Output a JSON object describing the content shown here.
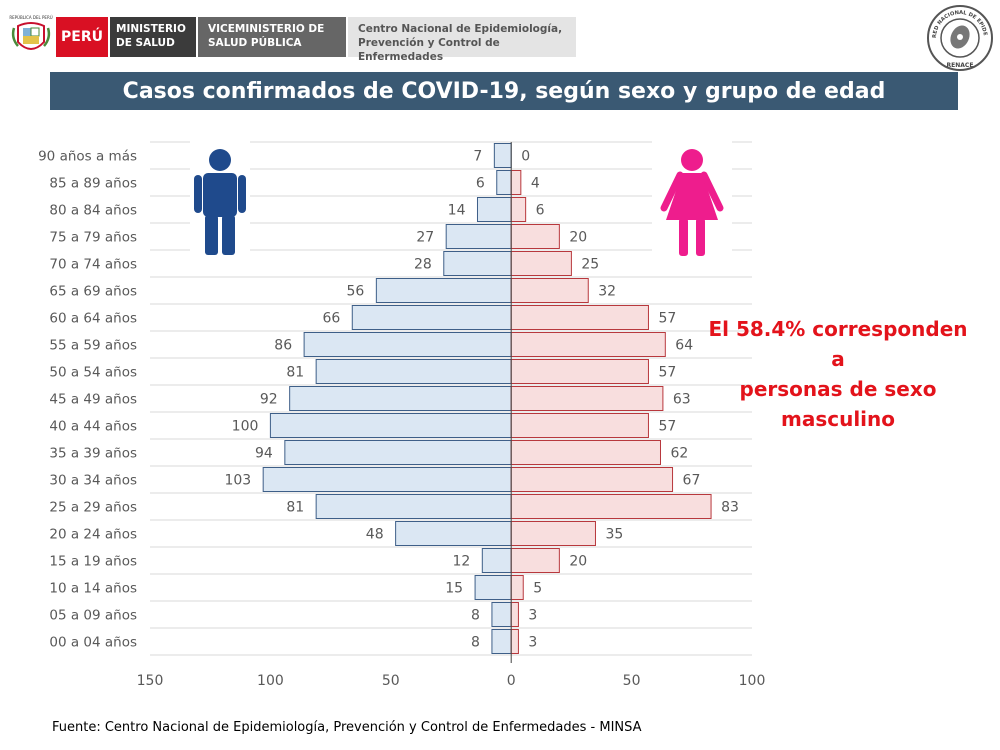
{
  "header": {
    "shield_text": "REPÚBLICA DEL PERÚ",
    "peru": "PERÚ",
    "ministerio_line1": "MINISTERIO",
    "ministerio_line2": "DE SALUD",
    "viceministerio_line1": "VICEMINISTERIO DE",
    "viceministerio_line2": "SALUD PÚBLICA",
    "centro_line1": "Centro Nacional de Epidemiología,",
    "centro_line2": "Prevención y Control de Enfermedades",
    "renace_text": "RED NACIONAL DE EPIDEMIOLOGÍA",
    "renace_short": "RENACE"
  },
  "title": "Casos confirmados de COVID-19, según sexo y grupo de edad",
  "annotation": {
    "line1": "El 58.4% corresponden a",
    "line2": "personas de sexo",
    "line3": "masculino"
  },
  "source": "Fuente: Centro Nacional de Epidemiología, Prevención y Control de Enfermedades - MINSA",
  "colors": {
    "male_fill": "#dbe7f3",
    "male_stroke": "#3e5f88",
    "female_fill": "#f8dede",
    "female_stroke": "#b8383d",
    "male_icon": "#1f4a8c",
    "female_icon": "#ee1d8d",
    "grid": "#d9d9d9",
    "label": "#595959"
  },
  "chart_data": {
    "type": "bar",
    "subtype": "population-pyramid",
    "categories": [
      "90 años a más",
      "85 a 89 años",
      "80 a 84 años",
      "75 a 79 años",
      "70 a 74 años",
      "65 a 69 años",
      "60 a 64 años",
      "55 a 59 años",
      "50 a 54 años",
      "45 a 49 años",
      "40 a 44 años",
      "35 a 39 años",
      "30 a 34 años",
      "25 a 29 años",
      "20 a 24 años",
      "15 a 19 años",
      "10 a 14 años",
      "05 a 09 años",
      "00 a 04 años"
    ],
    "series": [
      {
        "name": "Masculino",
        "side": "left",
        "values": [
          7,
          6,
          14,
          27,
          28,
          56,
          66,
          86,
          81,
          92,
          100,
          94,
          103,
          81,
          48,
          12,
          15,
          8,
          8
        ]
      },
      {
        "name": "Femenino",
        "side": "right",
        "values": [
          0,
          4,
          6,
          20,
          25,
          32,
          57,
          64,
          57,
          63,
          57,
          62,
          67,
          83,
          35,
          20,
          5,
          3,
          3
        ]
      }
    ],
    "xlim": [
      -150,
      100
    ],
    "xticks": [
      -150,
      -100,
      -50,
      0,
      50,
      100
    ],
    "xtick_labels": [
      "150",
      "100",
      "50",
      "0",
      "50",
      "100"
    ],
    "grid": "horizontal",
    "legend": "icons (male top-left, female top-right)"
  }
}
